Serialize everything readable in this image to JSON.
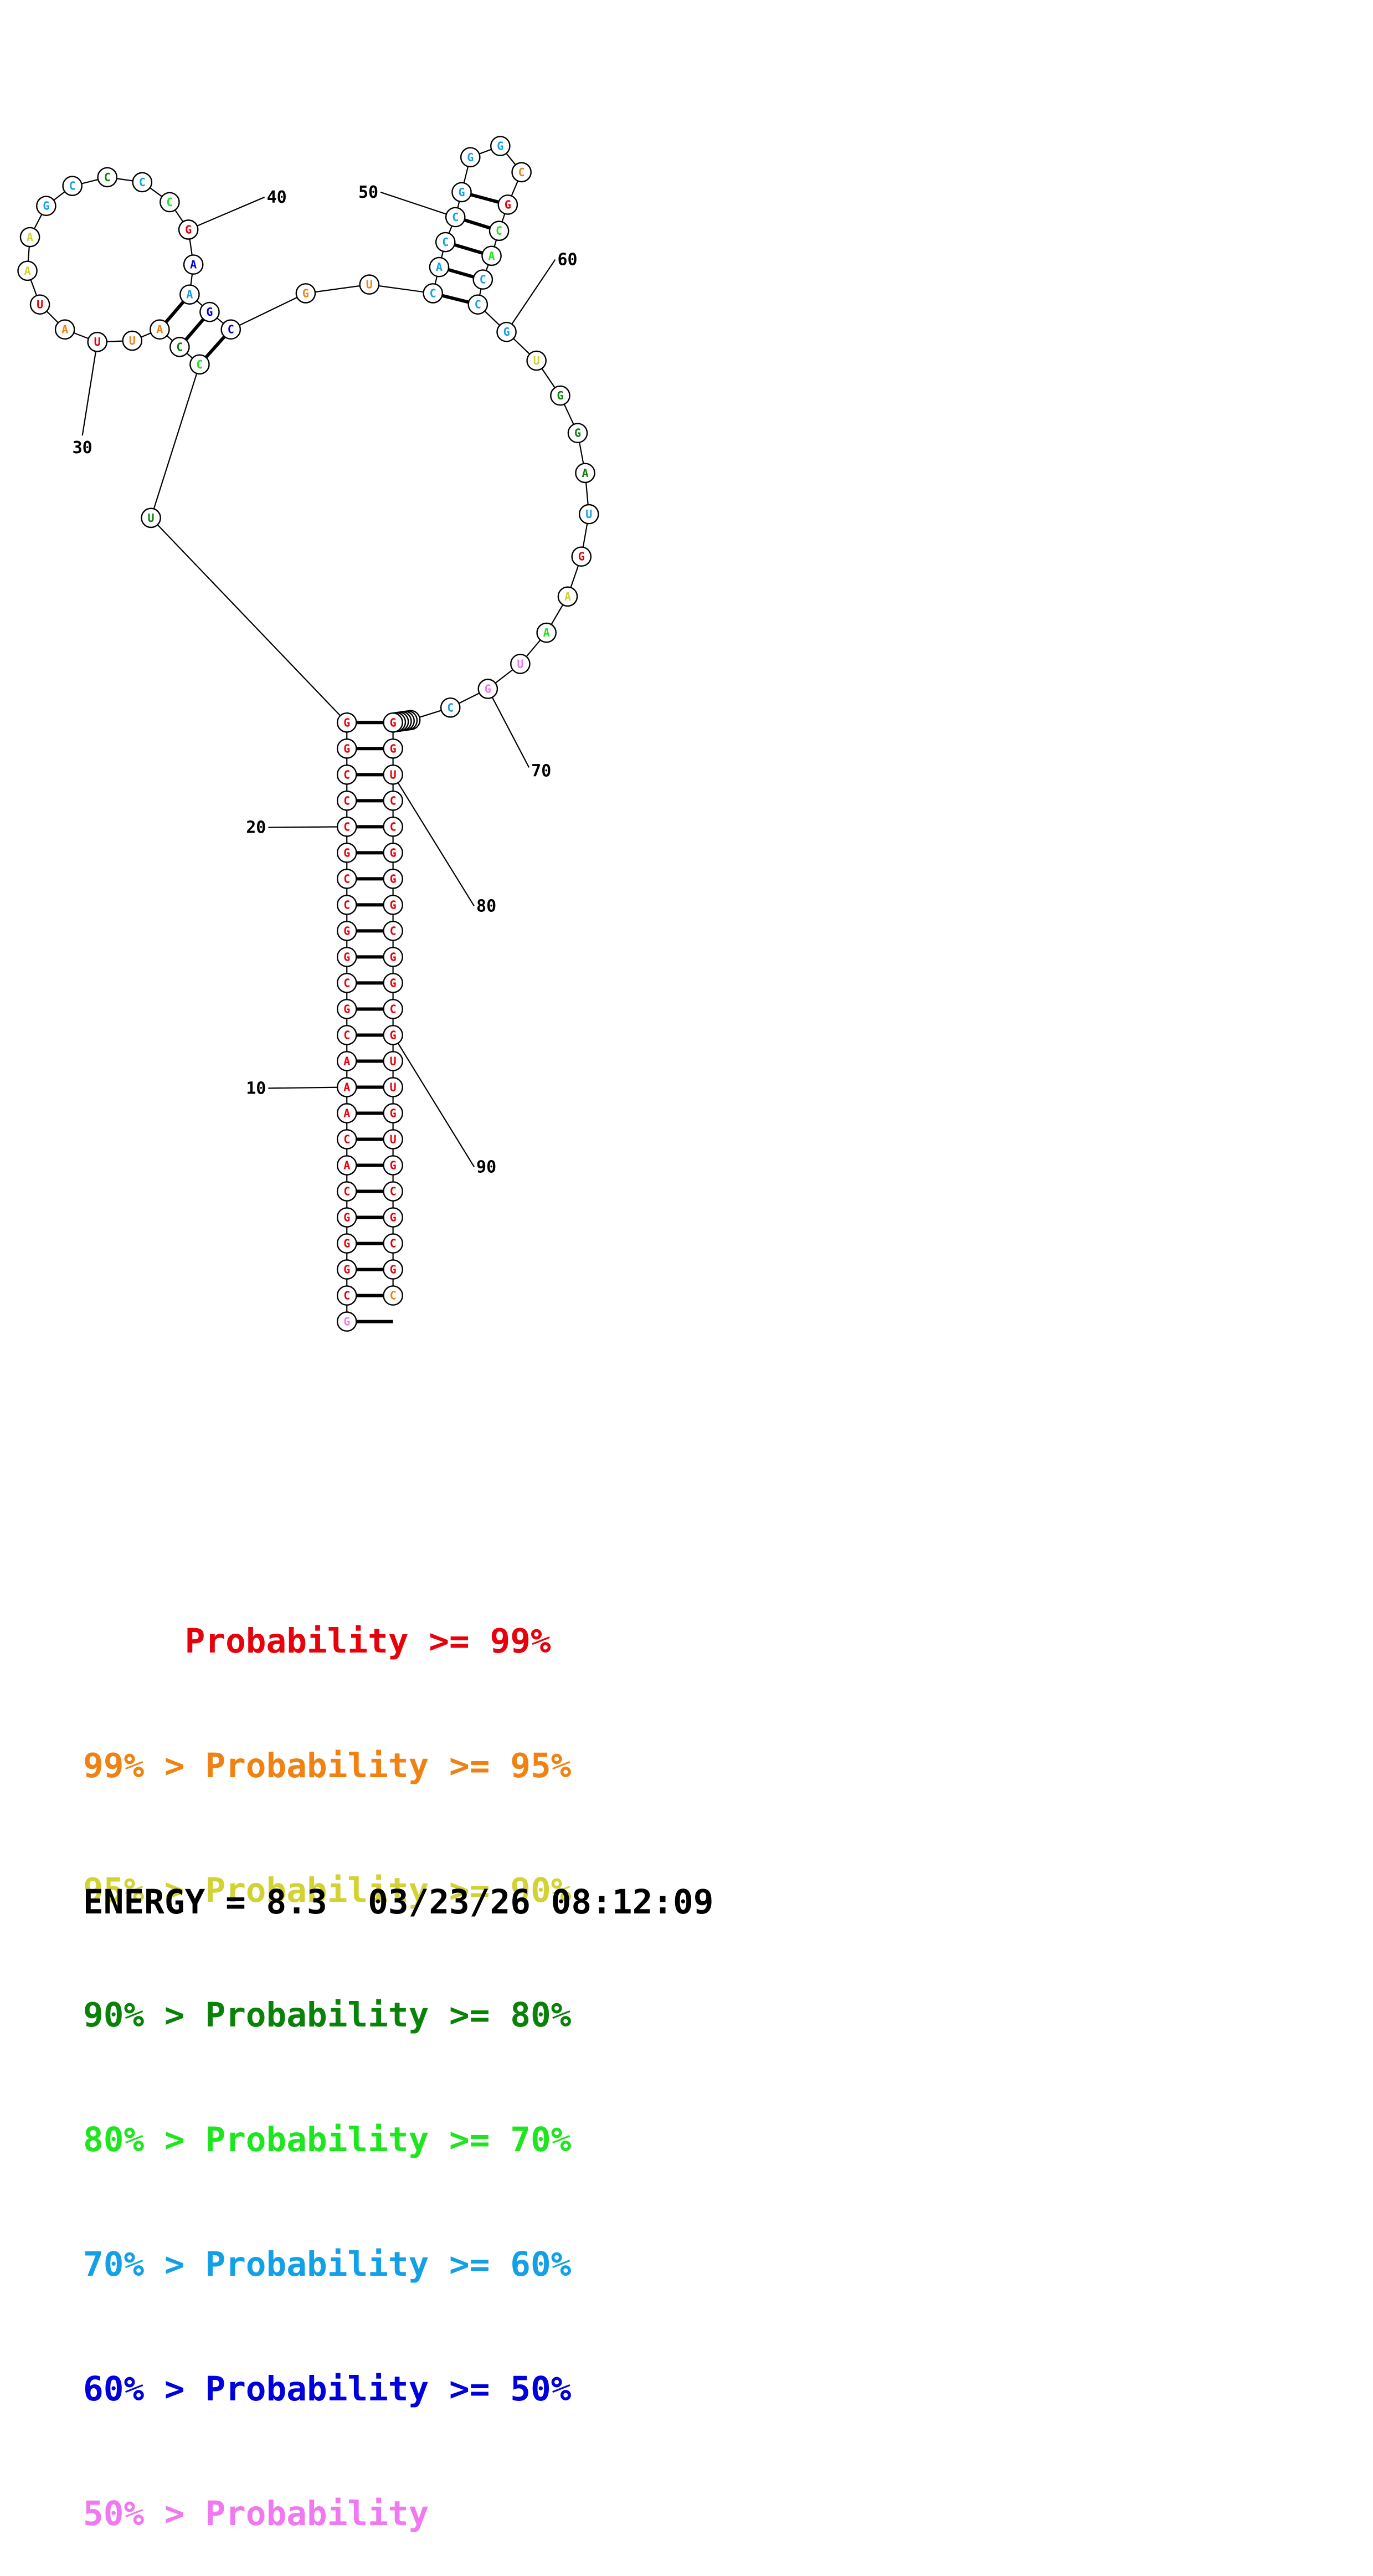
{
  "molecule": {
    "sequence": "GCGGGCACAAACGCGGCCGCCCGGUCCAUUAUAAGCCCCGAAGCGUCACCGGGCGCACCGUGGAUGAAUGCGAUAUCGGUCCGGGCGGCGUUGUGCGCGC",
    "colors": [
      "pk",
      "red",
      "red",
      "red",
      "red",
      "red",
      "red",
      "red",
      "red",
      "red",
      "red",
      "red",
      "red",
      "red",
      "red",
      "red",
      "red",
      "red",
      "red",
      "red",
      "red",
      "red",
      "red",
      "red",
      "dg",
      "grn",
      "dg",
      "orn",
      "orn",
      "red",
      "orn",
      "red",
      "yel",
      "yel",
      "sky",
      "sky",
      "dg",
      "sky",
      "grn",
      "red",
      "blu",
      "sky",
      "blu",
      "blu",
      "orn",
      "orn",
      "sky",
      "sky",
      "sky",
      "sky",
      "sky",
      "sky",
      "sky",
      "orn",
      "red",
      "grn",
      "grn",
      "sky",
      "sky",
      "sky",
      "yel",
      "dg",
      "dg",
      "dg",
      "sky",
      "red",
      "yel",
      "grn",
      "pk",
      "pk",
      "sky",
      "sky",
      "grn",
      "dg",
      "red",
      "red",
      "red",
      "red",
      "red",
      "red",
      "red",
      "red",
      "red",
      "red",
      "red",
      "red",
      "red",
      "red",
      "red",
      "red",
      "red",
      "red",
      "red",
      "red",
      "red",
      "red",
      "red",
      "red",
      "red",
      "orn"
    ],
    "position_labels": [
      "10",
      "20",
      "30",
      "40",
      "50",
      "60",
      "70",
      "80",
      "90"
    ]
  },
  "legend": {
    "rows": [
      {
        "text": "     Probability >= 99%",
        "color": "#e8000b"
      },
      {
        "text": "99% > Probability >= 95%",
        "color": "#f08214"
      },
      {
        "text": "95% > Probability >= 90%",
        "color": "#d2d232"
      },
      {
        "text": "90% > Probability >= 80%",
        "color": "#0a820a"
      },
      {
        "text": "80% > Probability >= 70%",
        "color": "#1ee61e"
      },
      {
        "text": "70% > Probability >= 60%",
        "color": "#14a0e6"
      },
      {
        "text": "60% > Probability >= 50%",
        "color": "#0000dc"
      },
      {
        "text": "50% > Probability",
        "color": "#f078f0"
      }
    ],
    "energy_label": "ENERGY = 8.3  03/23/26 08:12:09"
  },
  "colors": {
    "red": "#e8000b",
    "orn": "#f08214",
    "yel": "#d2d232",
    "dg": "#0a820a",
    "grn": "#1ee61e",
    "sky": "#14a0e6",
    "blu": "#0000dc",
    "pk": "#f078f0"
  }
}
